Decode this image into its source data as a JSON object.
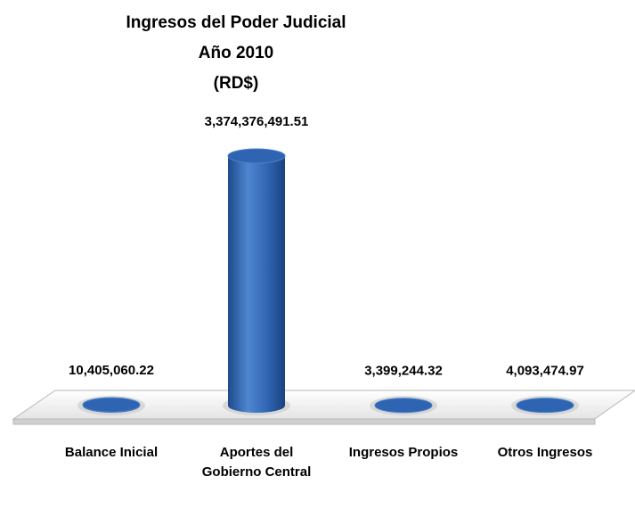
{
  "chart_data": {
    "type": "bar3d",
    "title": [
      "Ingresos del Poder Judicial",
      "Año 2010",
      "(RD$)"
    ],
    "categories": [
      "Balance Inicial",
      "Aportes del Gobierno Central",
      "Ingresos Propios",
      "Otros Ingresos"
    ],
    "values": [
      10405060.22,
      3374376491.51,
      3399244.32,
      4093474.97
    ],
    "value_labels": [
      "10,405,060.22",
      "3,374,376,491.51",
      "3,399,244.32",
      "4,093,474.97"
    ],
    "color": "#2f64b2"
  }
}
